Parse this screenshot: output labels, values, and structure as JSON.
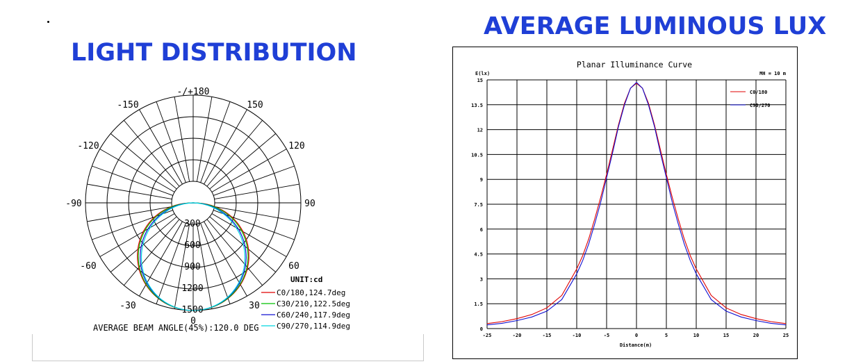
{
  "headings": {
    "left": "LIGHT DISTRIBUTION",
    "right": "AVERAGE LUMINOUS LUX"
  },
  "polar": {
    "angle_labels": {
      "top": "-/+180",
      "m150": "-150",
      "p150": "150",
      "m120": "-120",
      "p120": "120",
      "m90": "-90",
      "p90": "90",
      "m60": "-60",
      "p60": "60",
      "m30": "-30",
      "p30": "30",
      "zero": "0"
    },
    "radial_labels": [
      "300",
      "600",
      "900",
      "1200",
      "1500"
    ],
    "unit": "UNIT:cd",
    "legend": [
      {
        "label": "C0/180,124.7deg",
        "color": "#e00000"
      },
      {
        "label": "C30/210,122.5deg",
        "color": "#00c000"
      },
      {
        "label": "C60/240,117.9deg",
        "color": "#1010d0"
      },
      {
        "label": "C90/270,114.9deg",
        "color": "#00d8e0"
      }
    ],
    "footer": "AVERAGE BEAM ANGLE(45%):120.0 DEG"
  },
  "chart_data": [
    {
      "type": "polar",
      "unit": "cd",
      "radial_max": 1500,
      "radial_ticks": [
        300,
        600,
        900,
        1200,
        1500
      ],
      "angle_step_deg": 10,
      "series": [
        {
          "name": "C0/180,124.7deg",
          "beam_angle_deg": 124.7,
          "peak_cd": 1500
        },
        {
          "name": "C30/210,122.5deg",
          "beam_angle_deg": 122.5,
          "peak_cd": 1500
        },
        {
          "name": "C60/240,117.9deg",
          "beam_angle_deg": 117.9,
          "peak_cd": 1500
        },
        {
          "name": "C90/270,114.9deg",
          "beam_angle_deg": 114.9,
          "peak_cd": 1500
        }
      ]
    },
    {
      "type": "line",
      "title": "Planar Illuminance Curve",
      "xlabel": "Distance(m)",
      "ylabel": "E(lx)",
      "mh_label": "MH = 10 m",
      "xlim": [
        -25,
        25
      ],
      "ylim": [
        0,
        15
      ],
      "x_ticks": [
        "-25",
        "-20",
        "-15",
        "-10",
        "-5",
        "0",
        "5",
        "10",
        "15",
        "20",
        "25"
      ],
      "y_ticks": [
        "0",
        "1.5",
        "3",
        "4.5",
        "6",
        "7.5",
        "9",
        "10.5",
        "12",
        "13.5",
        "15"
      ],
      "x": [
        -25,
        -22.5,
        -20,
        -17.5,
        -15,
        -12.5,
        -10,
        -9,
        -8,
        -7,
        -6,
        -5,
        -4,
        -3,
        -2,
        -1,
        0,
        1,
        2,
        3,
        4,
        5,
        6,
        7,
        8,
        9,
        10,
        12.5,
        15,
        17.5,
        20,
        22.5,
        25
      ],
      "series": [
        {
          "name": "C0/180",
          "color": "#e00000",
          "values": [
            0.3,
            0.42,
            0.6,
            0.85,
            1.25,
            2.0,
            3.6,
            4.4,
            5.4,
            6.6,
            7.9,
            9.3,
            10.8,
            12.3,
            13.6,
            14.5,
            14.8,
            14.5,
            13.6,
            12.3,
            10.8,
            9.3,
            7.9,
            6.6,
            5.4,
            4.4,
            3.6,
            2.0,
            1.25,
            0.85,
            0.6,
            0.42,
            0.3
          ]
        },
        {
          "name": "C90/270",
          "color": "#1010d0",
          "values": [
            0.22,
            0.32,
            0.48,
            0.7,
            1.05,
            1.75,
            3.3,
            4.1,
            5.1,
            6.3,
            7.6,
            9.1,
            10.6,
            12.2,
            13.5,
            14.5,
            14.85,
            14.5,
            13.5,
            12.2,
            10.6,
            9.1,
            7.6,
            6.3,
            5.1,
            4.1,
            3.3,
            1.75,
            1.05,
            0.7,
            0.48,
            0.32,
            0.22
          ]
        }
      ]
    }
  ]
}
